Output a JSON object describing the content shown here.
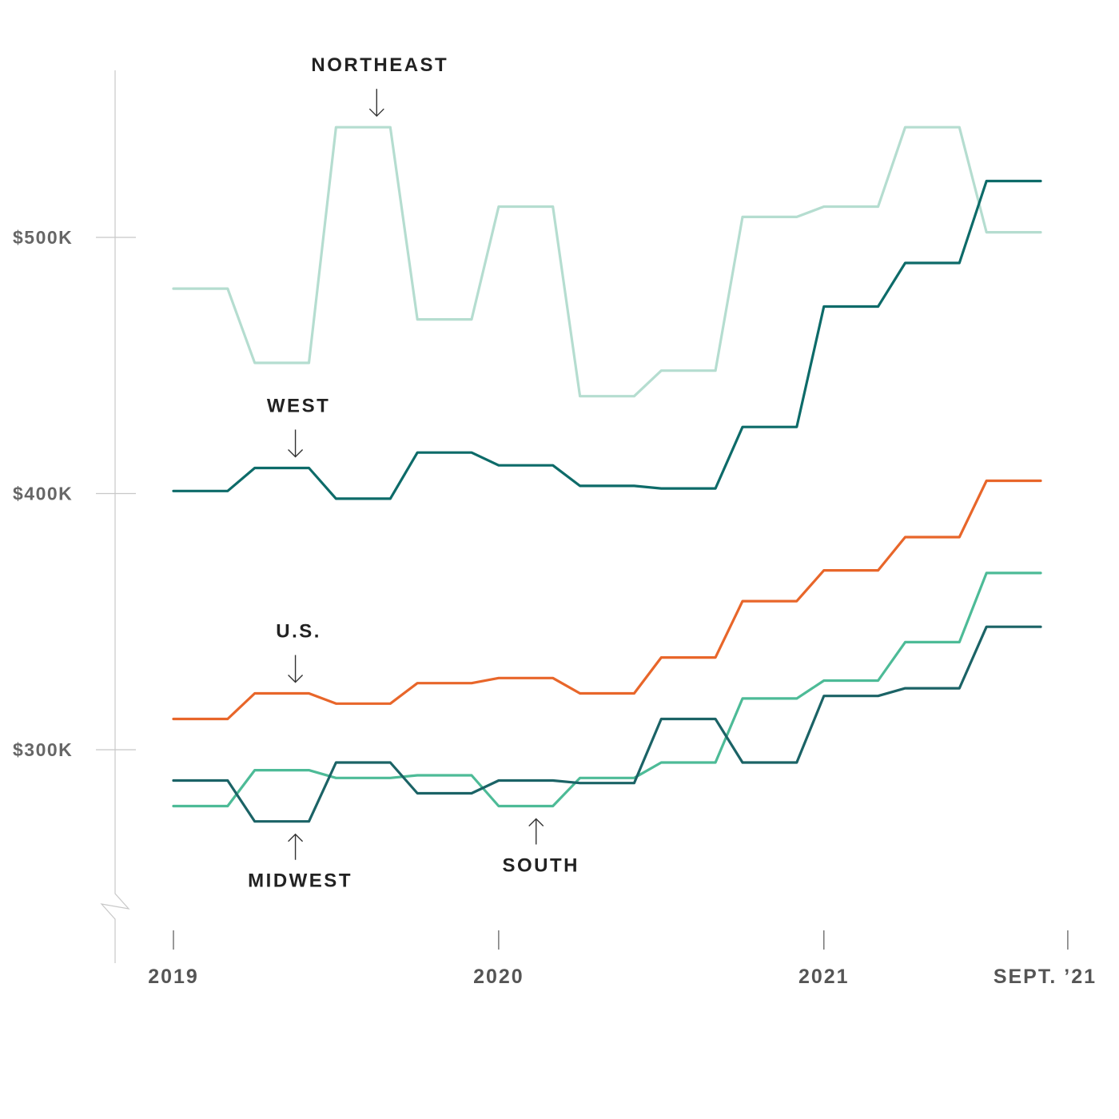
{
  "chart_data": {
    "type": "line",
    "title": "",
    "xlabel": "",
    "ylabel": "",
    "ylim": [
      258000,
      572000
    ],
    "y_ticks": [
      {
        "value": 300000,
        "label": "$300K"
      },
      {
        "value": 400000,
        "label": "$400K"
      },
      {
        "value": 500000,
        "label": "$500K"
      }
    ],
    "x_ticks": [
      {
        "value": 0,
        "label": "2019"
      },
      {
        "value": 12,
        "label": "2020"
      },
      {
        "value": 24,
        "label": "2021"
      },
      {
        "value": 33,
        "label": "SEPT. ’21"
      }
    ],
    "x": [
      "2019-01",
      "2019-02",
      "2019-03",
      "2019-04",
      "2019-05",
      "2019-06",
      "2019-07",
      "2019-08",
      "2019-09",
      "2019-10",
      "2019-11",
      "2019-12",
      "2020-01",
      "2020-02",
      "2020-03",
      "2020-04",
      "2020-05",
      "2020-06",
      "2020-07",
      "2020-08",
      "2020-09",
      "2020-10",
      "2020-11",
      "2020-12",
      "2021-01",
      "2021-02",
      "2021-03",
      "2021-04",
      "2021-05",
      "2021-06",
      "2021-07",
      "2021-08",
      "2021-09"
    ],
    "series": [
      {
        "name": "NORTHEAST",
        "color": "#b5ddd0",
        "values": [
          480000,
          480000,
          480000,
          451000,
          451000,
          451000,
          543000,
          543000,
          543000,
          468000,
          468000,
          468000,
          512000,
          512000,
          512000,
          438000,
          438000,
          438000,
          448000,
          448000,
          448000,
          508000,
          508000,
          508000,
          512000,
          512000,
          512000,
          543000,
          543000,
          543000,
          502000,
          502000,
          502000
        ]
      },
      {
        "name": "WEST",
        "color": "#0d6b69",
        "values": [
          401000,
          401000,
          401000,
          410000,
          410000,
          410000,
          398000,
          398000,
          398000,
          416000,
          416000,
          416000,
          411000,
          411000,
          411000,
          403000,
          403000,
          403000,
          402000,
          402000,
          402000,
          426000,
          426000,
          426000,
          473000,
          473000,
          473000,
          490000,
          490000,
          490000,
          522000,
          522000,
          522000
        ]
      },
      {
        "name": "U.S.",
        "color": "#e8662a",
        "values": [
          312000,
          312000,
          312000,
          322000,
          322000,
          322000,
          318000,
          318000,
          318000,
          326000,
          326000,
          326000,
          328000,
          328000,
          328000,
          322000,
          322000,
          322000,
          336000,
          336000,
          336000,
          358000,
          358000,
          358000,
          370000,
          370000,
          370000,
          383000,
          383000,
          383000,
          405000,
          405000,
          405000
        ]
      },
      {
        "name": "SOUTH",
        "color": "#4dbb97",
        "values": [
          278000,
          278000,
          278000,
          292000,
          292000,
          292000,
          289000,
          289000,
          289000,
          290000,
          290000,
          290000,
          278000,
          278000,
          278000,
          289000,
          289000,
          289000,
          295000,
          295000,
          295000,
          320000,
          320000,
          320000,
          327000,
          327000,
          327000,
          342000,
          342000,
          342000,
          369000,
          369000,
          369000
        ]
      },
      {
        "name": "MIDWEST",
        "color": "#1b6366",
        "values": [
          288000,
          288000,
          288000,
          272000,
          272000,
          272000,
          295000,
          295000,
          295000,
          283000,
          283000,
          283000,
          288000,
          288000,
          288000,
          287000,
          287000,
          287000,
          312000,
          312000,
          312000,
          295000,
          295000,
          295000,
          321000,
          321000,
          321000,
          324000,
          324000,
          324000,
          348000,
          348000,
          348000
        ]
      }
    ],
    "annotations": [
      {
        "series": "NORTHEAST",
        "text": "NORTHEAST",
        "index": 7,
        "position": "above"
      },
      {
        "series": "WEST",
        "text": "WEST",
        "index": 4,
        "position": "above"
      },
      {
        "series": "U.S.",
        "text": "U.S.",
        "index": 4,
        "position": "above"
      },
      {
        "series": "MIDWEST",
        "text": "MIDWEST",
        "index": 4,
        "position": "below"
      },
      {
        "series": "SOUTH",
        "text": "SOUTH",
        "index": 13,
        "position": "below"
      }
    ],
    "grid": false,
    "legend": "none"
  }
}
